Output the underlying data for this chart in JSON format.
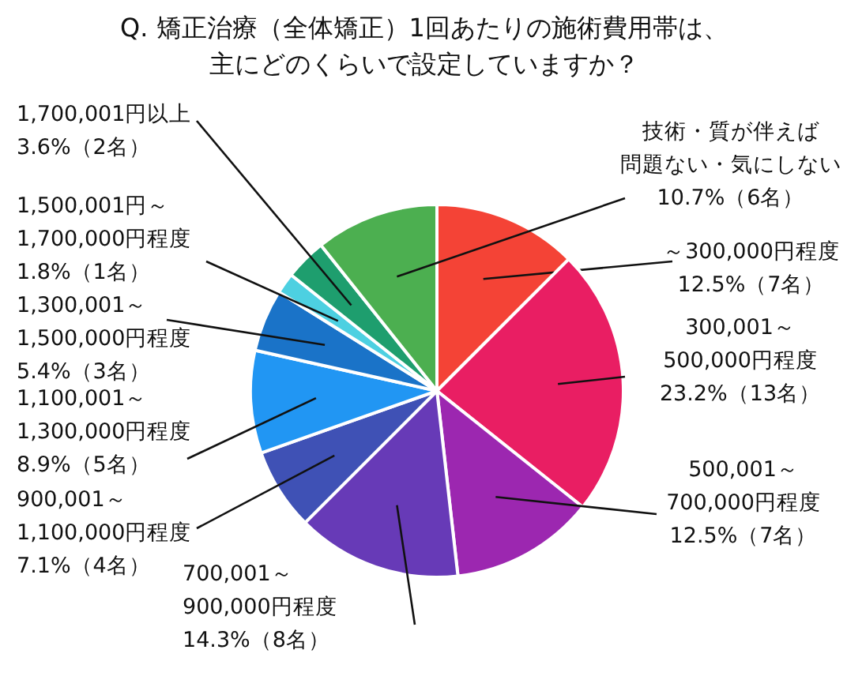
{
  "chart_data": {
    "type": "pie",
    "title": "Q. 矯正治療（全体矯正）1回あたりの施術費用帯は、主にどのくらいで設定していますか？",
    "categories": [
      "～300,000円程度",
      "300,001～500,000円程度",
      "500,001～700,000円程度",
      "700,001～900,000円程度",
      "900,001～1,100,000円程度",
      "1,100,001～1,300,000円程度",
      "1,300,001～1,500,000円程度",
      "1,500,001円～1,700,000円程度",
      "1,700,001円以上",
      "技術・質が伴えば問題ない・気にしない"
    ],
    "values": [
      12.5,
      23.2,
      12.5,
      14.3,
      7.1,
      8.9,
      5.4,
      1.8,
      3.6,
      10.7
    ],
    "colors": [
      "#f44336",
      "#e91e63",
      "#9c27b0",
      "#673ab7",
      "#3f51b5",
      "#2196f3",
      "#1a73c8",
      "#4dd0e1",
      "#1e9e6e",
      "#4caf50"
    ],
    "value_labels": [
      "12.5%（7名）",
      "23.2%（13名）",
      "12.5%（7名）",
      "14.3%（8名）",
      "7.1%（4名）",
      "8.9%（5名）",
      "5.4%（3名）",
      "1.8%（1名）",
      "3.6%（2名）",
      "10.7%（6名）"
    ]
  }
}
